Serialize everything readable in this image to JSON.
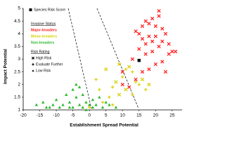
{
  "chart_data": {
    "type": "scatter",
    "x_label": "Establishment Spread Potential",
    "y_label": "Impact Potential",
    "xlim": [
      -20,
      28
    ],
    "xticks": [
      -20,
      -15,
      -10,
      -5,
      0,
      5,
      10,
      15,
      20,
      25
    ],
    "ylim": [
      1,
      5
    ],
    "yticks": [
      1,
      1.5,
      2,
      2.5,
      3,
      3.5,
      4,
      4.5,
      5
    ],
    "highlight": {
      "label": "Species Risk Score",
      "x": 15,
      "y": 2.95
    },
    "status_title": "Invasive Status",
    "risk_title": "Risk Rating",
    "risk_legend": [
      {
        "label": "High Risk",
        "marker": "x"
      },
      {
        "label": "Evaluate Further",
        "marker": "+"
      },
      {
        "label": "Low Risk",
        "marker": "triangle"
      }
    ],
    "series": [
      {
        "name": "Major-Invaders",
        "color": "#ff2020",
        "marker": "x",
        "x": [
          14,
          15,
          16,
          17,
          18,
          19,
          20,
          21,
          22,
          16,
          18,
          20,
          22,
          24,
          23,
          21,
          19,
          17,
          15,
          13,
          20,
          22,
          24,
          25,
          18,
          16,
          14,
          12,
          10,
          17,
          21,
          19,
          23,
          26,
          10
        ],
        "values": [
          4.1,
          4.0,
          4.3,
          4.5,
          4.4,
          4.6,
          4.3,
          4.7,
          4.2,
          3.8,
          3.9,
          3.9,
          3.7,
          3.6,
          4.0,
          3.5,
          3.3,
          3.2,
          3.4,
          3.0,
          2.8,
          2.9,
          3.2,
          3.3,
          2.6,
          2.5,
          2.2,
          1.9,
          2.0,
          3.6,
          4.9,
          3.7,
          2.5,
          3.3,
          2.5
        ]
      },
      {
        "name": "Minor-Invaders",
        "color": "#d8d000",
        "markers": [
          "+",
          "x",
          "+",
          "x",
          "+",
          "x",
          "x",
          "+",
          "+",
          "+",
          "+",
          "x",
          "+",
          "x",
          "+",
          "+",
          "+",
          "x",
          "+",
          "x",
          "+",
          "+"
        ],
        "x": [
          2,
          5,
          7,
          8,
          10,
          11,
          12,
          13,
          14,
          6,
          4,
          9,
          15,
          16,
          11,
          13,
          3,
          18,
          17,
          9,
          7,
          0
        ],
        "values": [
          2.2,
          2.6,
          1.9,
          2.1,
          2.3,
          1.8,
          2.7,
          2.5,
          2.1,
          1.5,
          1.3,
          1.6,
          2.0,
          2.2,
          2.6,
          1.6,
          1.8,
          2.0,
          1.8,
          2.8,
          1.2,
          1.1
        ]
      },
      {
        "name": "Non-Invaders",
        "color": "#2db82d",
        "marker": "triangle",
        "x": [
          -16,
          -14,
          -12,
          -10,
          -8,
          -6,
          -5,
          -4,
          -3,
          -2,
          -1,
          0,
          1,
          -7,
          -5,
          -3,
          -2,
          2,
          3,
          4,
          5,
          6,
          8,
          -9,
          -11,
          -13,
          -4,
          -6,
          -1,
          1
        ],
        "values": [
          1.2,
          1.3,
          1.1,
          1.4,
          1.2,
          1.3,
          1.1,
          1.5,
          1.2,
          1.1,
          1.3,
          1.2,
          1.4,
          1.6,
          1.8,
          1.9,
          1.6,
          1.2,
          1.5,
          1.1,
          1.3,
          1.2,
          1.1,
          1.1,
          1.2,
          1.1,
          2.0,
          1.1,
          1.0,
          1.1
        ]
      }
    ]
  }
}
